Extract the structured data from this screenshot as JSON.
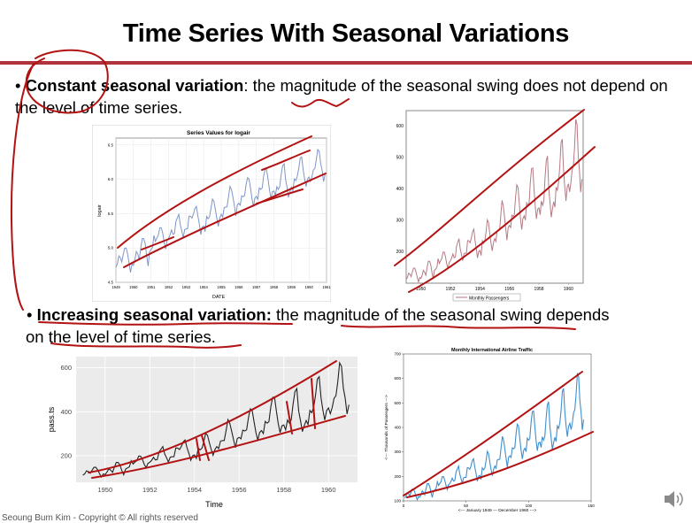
{
  "slide": {
    "title": "Time Series With Seasonal Variations",
    "bullet1": {
      "marker": "•",
      "bold": "Constant seasonal variation",
      "rest": ": the magnitude of the seasonal swing does not depend on the level of time series."
    },
    "bullet2": {
      "marker": "•",
      "bold": "Increasing seasonal variation:",
      "rest": " the magnitude of the seasonal swing depends",
      "rest2": "on the level of time series."
    },
    "footer": "Seoung Bum Kim - Copyright © All rights reserved",
    "accent_color": "#b0323a"
  },
  "chart_data": [
    {
      "id": "logair",
      "type": "line",
      "title": "Series Values for logair",
      "xlabel": "DATE",
      "ylabel": "logair",
      "x_ticks": [
        "1949",
        "1950",
        "1951",
        "1952",
        "1953",
        "1954",
        "1955",
        "1956",
        "1957",
        "1958",
        "1959",
        "1960",
        "1961"
      ],
      "y_ticks": [
        "4.5",
        "5.0",
        "5.5",
        "6.0",
        "6.5"
      ],
      "xlim": [
        1949,
        1961
      ],
      "ylim": [
        4.5,
        6.6
      ],
      "series_name": "logair",
      "color": "#7f95c9"
    },
    {
      "id": "passengers_log",
      "type": "line",
      "title": "",
      "xlabel": "",
      "ylabel": "",
      "x_ticks": [
        "1950",
        "1952",
        "1954",
        "1956",
        "1958",
        "1960"
      ],
      "y_ticks": [
        "200",
        "300",
        "400",
        "500",
        "600"
      ],
      "xlim": [
        1949,
        1961
      ],
      "ylim": [
        100,
        650
      ],
      "legend": "Monthly Passengers",
      "color": "#b57a82"
    },
    {
      "id": "pass_ts",
      "type": "line",
      "title": "",
      "xlabel": "Time",
      "ylabel": "pass.ts",
      "x_ticks": [
        "1950",
        "1952",
        "1954",
        "1956",
        "1958",
        "1960"
      ],
      "y_ticks": [
        "200",
        "400",
        "600"
      ],
      "xlim": [
        1948.7,
        1961.3
      ],
      "ylim": [
        80,
        650
      ],
      "color": "#222222"
    },
    {
      "id": "airline",
      "type": "line",
      "title": "Monthly International Airline Traffic",
      "xlabel": "<--- January 1949 --- December 1960 --->",
      "ylabel": "<--- Thousands of Passengers --->",
      "x_ticks": [
        "0",
        "50",
        "100",
        "150"
      ],
      "y_ticks": [
        "100",
        "200",
        "300",
        "400",
        "500",
        "600",
        "700"
      ],
      "xlim": [
        0,
        150
      ],
      "ylim": [
        100,
        700
      ],
      "color": "#3f8fcf"
    }
  ],
  "passengers": [
    112,
    118,
    132,
    129,
    121,
    135,
    148,
    148,
    136,
    119,
    104,
    118,
    115,
    126,
    141,
    135,
    125,
    149,
    170,
    170,
    158,
    133,
    114,
    140,
    145,
    150,
    178,
    163,
    172,
    178,
    199,
    199,
    184,
    162,
    146,
    166,
    171,
    180,
    193,
    181,
    183,
    218,
    230,
    242,
    209,
    191,
    172,
    194,
    196,
    196,
    236,
    235,
    229,
    243,
    264,
    272,
    237,
    211,
    180,
    201,
    204,
    188,
    235,
    227,
    234,
    264,
    302,
    293,
    259,
    229,
    203,
    229,
    242,
    233,
    267,
    269,
    270,
    315,
    364,
    347,
    312,
    274,
    237,
    278,
    284,
    277,
    317,
    313,
    318,
    374,
    413,
    405,
    355,
    306,
    271,
    306,
    315,
    301,
    356,
    348,
    355,
    422,
    465,
    467,
    404,
    347,
    305,
    336,
    340,
    318,
    362,
    348,
    363,
    435,
    491,
    505,
    404,
    359,
    310,
    337,
    360,
    342,
    406,
    396,
    420,
    472,
    548,
    559,
    463,
    407,
    362,
    405,
    417,
    391,
    419,
    461,
    472,
    535,
    622,
    606,
    508,
    461,
    390,
    432
  ]
}
